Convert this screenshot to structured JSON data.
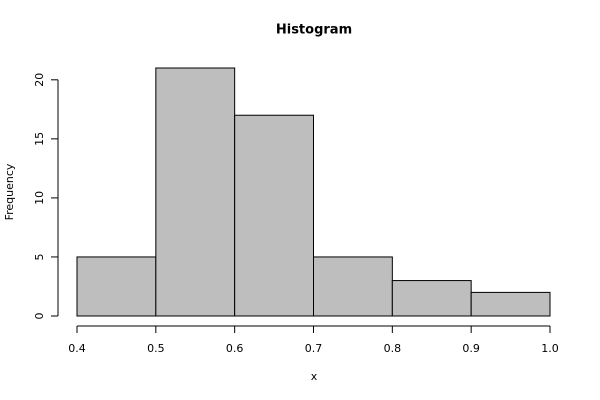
{
  "chart_data": {
    "type": "histogram",
    "title": "Histogram",
    "x_label": "x",
    "y_label": "Frequency",
    "bins": [
      0.4,
      0.5,
      0.6,
      0.7,
      0.8,
      0.9,
      1.0
    ],
    "values": [
      5,
      21,
      17,
      5,
      3,
      2
    ],
    "color": "#bebebe",
    "edge_color": "#000000",
    "xlim": [
      0.4,
      1.0
    ],
    "xticks": [
      0.4,
      0.5,
      0.6,
      0.7,
      0.8,
      0.9,
      {
        "value": 1.0,
        "label": "1.0"
      }
    ],
    "ylim": [
      0,
      21
    ],
    "yticks": [
      0,
      5,
      10,
      15,
      20
    ],
    "grid": false
  }
}
